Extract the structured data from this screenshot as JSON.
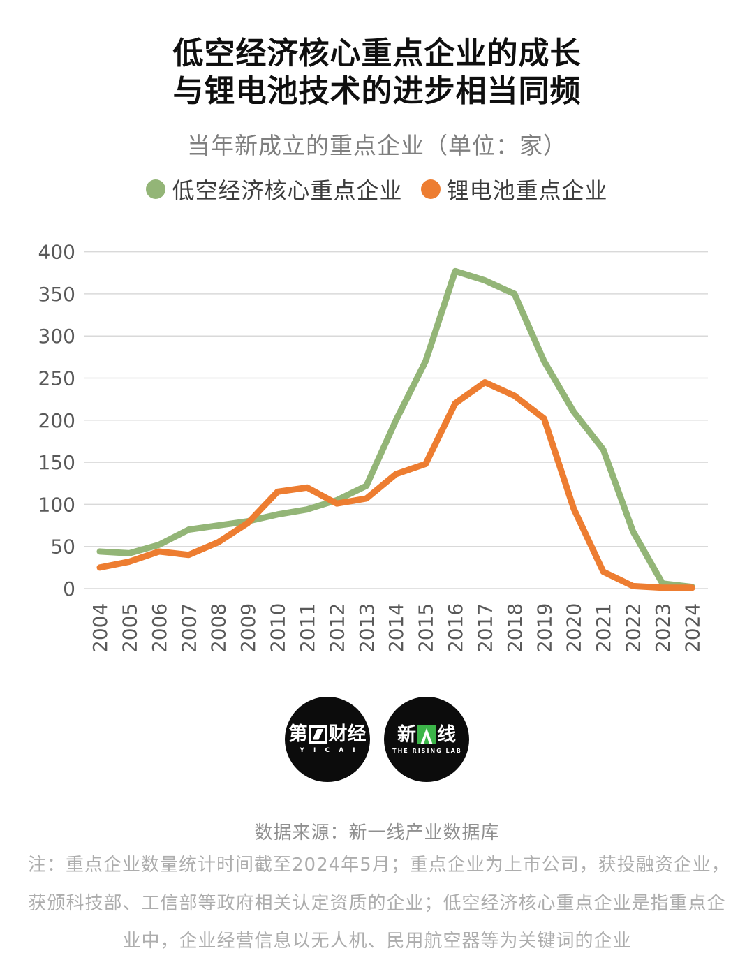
{
  "title": {
    "line1": "低空经济核心重点企业的成长",
    "line2": "与锂电池技术的进步相当同频"
  },
  "subtitle": "当年新成立的重点企业（单位：家）",
  "legend": [
    {
      "label": "低空经济核心重点企业",
      "color": "#93B577"
    },
    {
      "label": "锂电池重点企业",
      "color": "#ED7D31"
    }
  ],
  "chart_data": {
    "type": "line",
    "x": [
      2004,
      2005,
      2006,
      2007,
      2008,
      2009,
      2010,
      2011,
      2012,
      2013,
      2014,
      2015,
      2016,
      2017,
      2018,
      2019,
      2020,
      2021,
      2022,
      2023,
      2024
    ],
    "series": [
      {
        "name": "低空经济核心重点企业",
        "color": "#93B577",
        "values": [
          44,
          42,
          52,
          70,
          75,
          80,
          88,
          94,
          105,
          122,
          200,
          270,
          377,
          366,
          350,
          270,
          210,
          165,
          68,
          6,
          2
        ]
      },
      {
        "name": "锂电池重点企业",
        "color": "#ED7D31",
        "values": [
          25,
          32,
          44,
          40,
          55,
          78,
          115,
          120,
          101,
          107,
          136,
          148,
          220,
          245,
          229,
          202,
          95,
          20,
          3,
          1,
          1
        ]
      }
    ],
    "ylabel": "",
    "xlabel": "",
    "ylim": [
      0,
      400
    ],
    "ytick_step": 50,
    "grid": true,
    "gridline_color": "#D9D9D9",
    "axis_label_color": "#595959",
    "legend_position": "top"
  },
  "logos": {
    "yicai": {
      "left": "第",
      "right": "财经",
      "sub": "Y I C A I"
    },
    "rising": {
      "left": "新",
      "right": "线",
      "sub": "THE RISING LAB"
    }
  },
  "footer": {
    "source": "数据来源：新一线产业数据库",
    "notes": [
      "注：重点企业数量统计时间截至2024年5月；重点企业为上市公司，获投融资企业，",
      "获颁科技部、工信部等政府相关认定资质的企业；低空经济核心重点企业是指重点企",
      "业中，企业经营信息以无人机、民用航空器等为关键词的企业"
    ]
  }
}
